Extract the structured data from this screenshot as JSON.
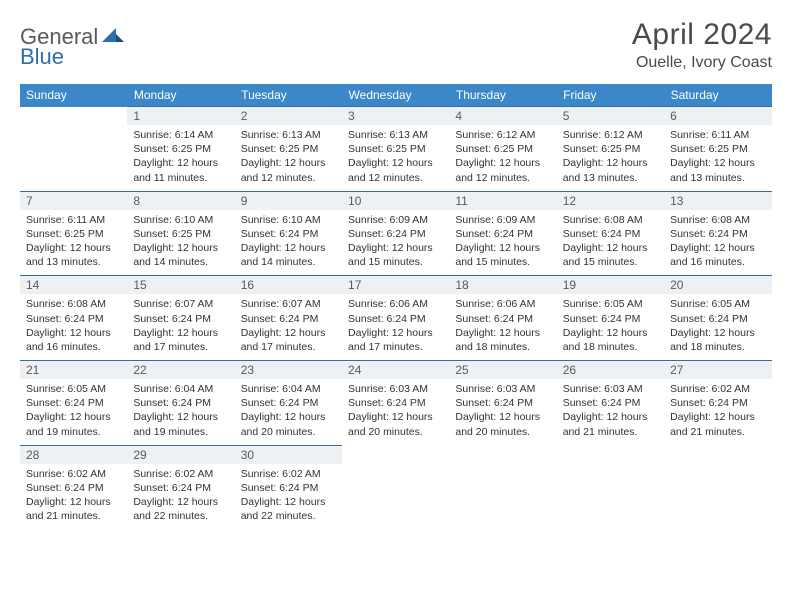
{
  "logo": {
    "word1": "General",
    "word2": "Blue"
  },
  "title": "April 2024",
  "location": "Ouelle, Ivory Coast",
  "colors": {
    "header_bg": "#3b87c8",
    "header_text": "#ffffff",
    "daynum_bg": "#eef1f3",
    "rule": "#2e6fab",
    "text": "#333333",
    "logo_gray": "#5a5a5a",
    "logo_blue": "#2e6fab"
  },
  "weekdays": [
    "Sunday",
    "Monday",
    "Tuesday",
    "Wednesday",
    "Thursday",
    "Friday",
    "Saturday"
  ],
  "weeks": [
    [
      null,
      {
        "n": "1",
        "sr": "6:14 AM",
        "ss": "6:25 PM",
        "dl": "12 hours and 11 minutes."
      },
      {
        "n": "2",
        "sr": "6:13 AM",
        "ss": "6:25 PM",
        "dl": "12 hours and 12 minutes."
      },
      {
        "n": "3",
        "sr": "6:13 AM",
        "ss": "6:25 PM",
        "dl": "12 hours and 12 minutes."
      },
      {
        "n": "4",
        "sr": "6:12 AM",
        "ss": "6:25 PM",
        "dl": "12 hours and 12 minutes."
      },
      {
        "n": "5",
        "sr": "6:12 AM",
        "ss": "6:25 PM",
        "dl": "12 hours and 13 minutes."
      },
      {
        "n": "6",
        "sr": "6:11 AM",
        "ss": "6:25 PM",
        "dl": "12 hours and 13 minutes."
      }
    ],
    [
      {
        "n": "7",
        "sr": "6:11 AM",
        "ss": "6:25 PM",
        "dl": "12 hours and 13 minutes."
      },
      {
        "n": "8",
        "sr": "6:10 AM",
        "ss": "6:25 PM",
        "dl": "12 hours and 14 minutes."
      },
      {
        "n": "9",
        "sr": "6:10 AM",
        "ss": "6:24 PM",
        "dl": "12 hours and 14 minutes."
      },
      {
        "n": "10",
        "sr": "6:09 AM",
        "ss": "6:24 PM",
        "dl": "12 hours and 15 minutes."
      },
      {
        "n": "11",
        "sr": "6:09 AM",
        "ss": "6:24 PM",
        "dl": "12 hours and 15 minutes."
      },
      {
        "n": "12",
        "sr": "6:08 AM",
        "ss": "6:24 PM",
        "dl": "12 hours and 15 minutes."
      },
      {
        "n": "13",
        "sr": "6:08 AM",
        "ss": "6:24 PM",
        "dl": "12 hours and 16 minutes."
      }
    ],
    [
      {
        "n": "14",
        "sr": "6:08 AM",
        "ss": "6:24 PM",
        "dl": "12 hours and 16 minutes."
      },
      {
        "n": "15",
        "sr": "6:07 AM",
        "ss": "6:24 PM",
        "dl": "12 hours and 17 minutes."
      },
      {
        "n": "16",
        "sr": "6:07 AM",
        "ss": "6:24 PM",
        "dl": "12 hours and 17 minutes."
      },
      {
        "n": "17",
        "sr": "6:06 AM",
        "ss": "6:24 PM",
        "dl": "12 hours and 17 minutes."
      },
      {
        "n": "18",
        "sr": "6:06 AM",
        "ss": "6:24 PM",
        "dl": "12 hours and 18 minutes."
      },
      {
        "n": "19",
        "sr": "6:05 AM",
        "ss": "6:24 PM",
        "dl": "12 hours and 18 minutes."
      },
      {
        "n": "20",
        "sr": "6:05 AM",
        "ss": "6:24 PM",
        "dl": "12 hours and 18 minutes."
      }
    ],
    [
      {
        "n": "21",
        "sr": "6:05 AM",
        "ss": "6:24 PM",
        "dl": "12 hours and 19 minutes."
      },
      {
        "n": "22",
        "sr": "6:04 AM",
        "ss": "6:24 PM",
        "dl": "12 hours and 19 minutes."
      },
      {
        "n": "23",
        "sr": "6:04 AM",
        "ss": "6:24 PM",
        "dl": "12 hours and 20 minutes."
      },
      {
        "n": "24",
        "sr": "6:03 AM",
        "ss": "6:24 PM",
        "dl": "12 hours and 20 minutes."
      },
      {
        "n": "25",
        "sr": "6:03 AM",
        "ss": "6:24 PM",
        "dl": "12 hours and 20 minutes."
      },
      {
        "n": "26",
        "sr": "6:03 AM",
        "ss": "6:24 PM",
        "dl": "12 hours and 21 minutes."
      },
      {
        "n": "27",
        "sr": "6:02 AM",
        "ss": "6:24 PM",
        "dl": "12 hours and 21 minutes."
      }
    ],
    [
      {
        "n": "28",
        "sr": "6:02 AM",
        "ss": "6:24 PM",
        "dl": "12 hours and 21 minutes."
      },
      {
        "n": "29",
        "sr": "6:02 AM",
        "ss": "6:24 PM",
        "dl": "12 hours and 22 minutes."
      },
      {
        "n": "30",
        "sr": "6:02 AM",
        "ss": "6:24 PM",
        "dl": "12 hours and 22 minutes."
      },
      null,
      null,
      null,
      null
    ]
  ],
  "labels": {
    "sunrise": "Sunrise:",
    "sunset": "Sunset:",
    "daylight": "Daylight:"
  }
}
